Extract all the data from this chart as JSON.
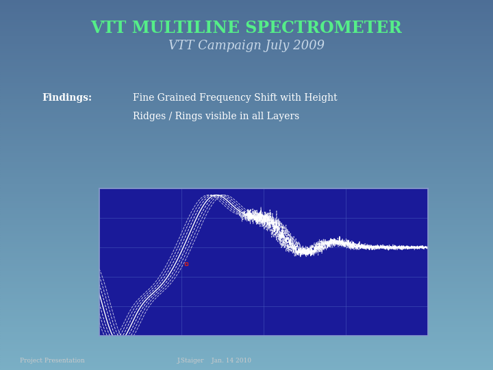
{
  "title1": "VTT MULTILINE SPECTROMETER",
  "title2": "VTT Campaign July 2009",
  "findings_label": "Findings:",
  "findings_text1": "Fine Grained Frequency Shift with Height",
  "findings_text2": "Ridges / Rings visible in all Layers",
  "footer_left": "Project Presentation",
  "footer_right": "J.Staiger    Jan. 14 2010",
  "bg_color_top": "#5577a0",
  "bg_color_bottom": "#7aaabf",
  "title1_color": "#55ee88",
  "title2_color": "#c8d8e8",
  "text_color": "#ffffff",
  "footer_color": "#cccccc",
  "plot_bg": "#1a1a99",
  "plot_border_color": "#8899cc",
  "grid_color": "#4455bb"
}
